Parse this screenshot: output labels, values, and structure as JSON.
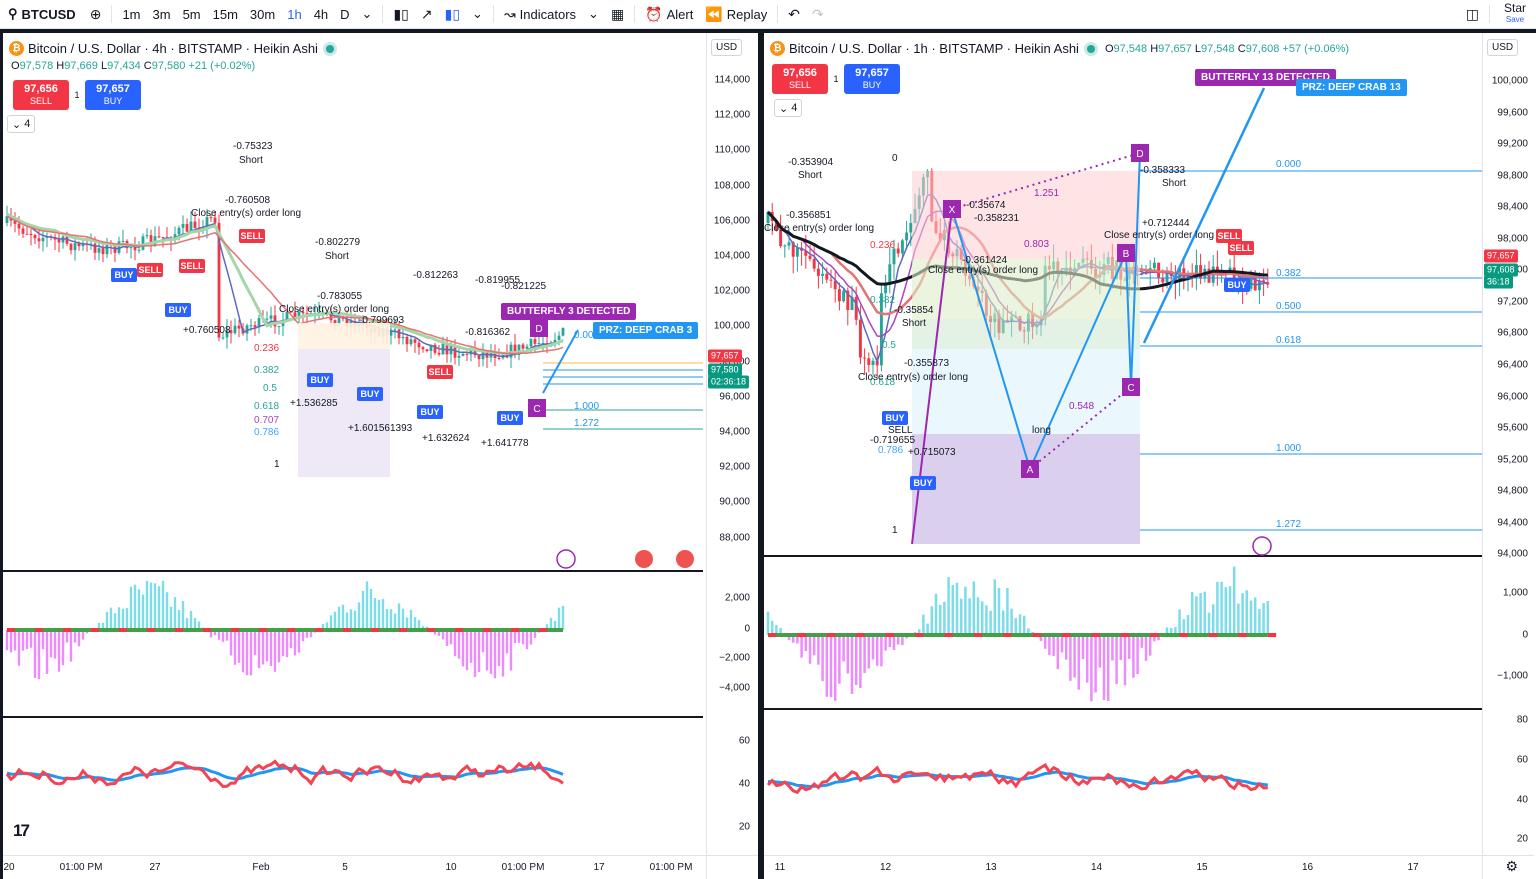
{
  "toolbar": {
    "symbol": "BTCUSD",
    "intervals": [
      "1m",
      "3m",
      "5m",
      "15m",
      "30m",
      "1h",
      "4h",
      "D"
    ],
    "active_interval": "1h",
    "indicators": "Indicators",
    "alert": "Alert",
    "replay": "Replay",
    "star": "Star",
    "save": "Save"
  },
  "left": {
    "title": "Bitcoin / U.S. Dollar · 4h · BITSTAMP · Heikin Ashi",
    "ohlc": {
      "o": "97,578",
      "h": "97,669",
      "l": "97,434",
      "c": "97,580",
      "chg": "+21 (+0.02%)"
    },
    "sell": {
      "price": "97,656",
      "label": "SELL"
    },
    "buy": {
      "price": "97,657",
      "label": "BUY"
    },
    "qty": "1",
    "collapse": "4",
    "currency": "USD",
    "price_ticks": [
      "114,000",
      "112,000",
      "110,000",
      "108,000",
      "106,000",
      "104,000",
      "102,000",
      "100,000",
      "98,000",
      "96,000",
      "94,000",
      "92,000",
      "90,000",
      "88,000"
    ],
    "last_price_tag": "97,657",
    "current_tag": "97,580",
    "countdown": "02:36:18",
    "macd_ticks": [
      "2,000",
      "0",
      "−2,000",
      "−4,000"
    ],
    "rsi_ticks": [
      "60",
      "40",
      "20"
    ],
    "time_ticks": [
      "20",
      "01:00 PM",
      "27",
      "Feb",
      "5",
      "10",
      "01:00 PM",
      "17",
      "01:00 PM"
    ],
    "badge_pattern": "BUTTERFLY 3 DETECTED",
    "badge_prz": "PRZ: DEEP CRAB 3",
    "fib_levels": [
      "0.000",
      "0.236",
      "0.382",
      "0.5",
      "0.618",
      "0.707",
      "0.786",
      "1",
      "1.000",
      "1.272"
    ],
    "annotations": [
      "-0.75323",
      "Short",
      "-0.760508",
      "Close entry(s) order long",
      "-0.802279",
      "-0.783055",
      "-0.799693",
      "-0.812263",
      "-0.819955",
      "-0.821225",
      "-0.816362",
      "+0.760508",
      "+1.536285",
      "+1.601561393",
      "+1.632624",
      "+1.641778",
      "SELL",
      "BUY",
      "long"
    ]
  },
  "right": {
    "title": "Bitcoin / U.S. Dollar · 1h · BITSTAMP · Heikin Ashi",
    "ohlc": {
      "o": "97,548",
      "h": "97,657",
      "l": "97,548",
      "c": "97,608",
      "chg": "+57 (+0.06%)"
    },
    "sell": {
      "price": "97,656",
      "label": "SELL"
    },
    "buy": {
      "price": "97,657",
      "label": "BUY"
    },
    "qty": "1",
    "collapse": "4",
    "currency": "USD",
    "price_ticks": [
      "100,000",
      "99,600",
      "99,200",
      "98,800",
      "98,400",
      "98,000",
      "97,600",
      "97,200",
      "96,800",
      "96,400",
      "96,000",
      "95,600",
      "95,200",
      "94,800",
      "94,400",
      "94,000"
    ],
    "last_price_tag": "97,657",
    "current_tag": "97,608",
    "countdown": "36:18",
    "macd_ticks": [
      "1,000",
      "0",
      "−1,000"
    ],
    "rsi_ticks": [
      "80",
      "60",
      "40",
      "20"
    ],
    "time_ticks": [
      "11",
      "12",
      "13",
      "14",
      "15",
      "16",
      "17"
    ],
    "badge_pattern": "BUTTERFLY 13 DETECTED",
    "badge_prz": "PRZ: DEEP CRAB 13",
    "fib_levels": [
      "0",
      "0.236",
      "0.382",
      "0.5",
      "0.618",
      "0.786",
      "1",
      "0.000",
      "0.382",
      "0.500",
      "0.618",
      "1.000",
      "1.272",
      "1.251",
      "0.803",
      "0.548"
    ],
    "points": [
      "X",
      "A",
      "B",
      "C",
      "D"
    ],
    "annotations": [
      "-0.353904",
      "Short",
      "-0.356851",
      "Close entry(s) order long",
      "-0.35674",
      "-0.358231",
      "-0.361424",
      "-0.35854",
      "-0.355873",
      "-0.358333",
      "+0.712444",
      "-0.719655",
      "+0.715073",
      "long",
      "SELL",
      "BUY"
    ]
  },
  "colors": {
    "sell": "#f23645",
    "buy": "#2962ff",
    "up": "#26a69a",
    "down": "#f23645",
    "purple": "#9c27b0",
    "blue_line": "#2196f3"
  }
}
